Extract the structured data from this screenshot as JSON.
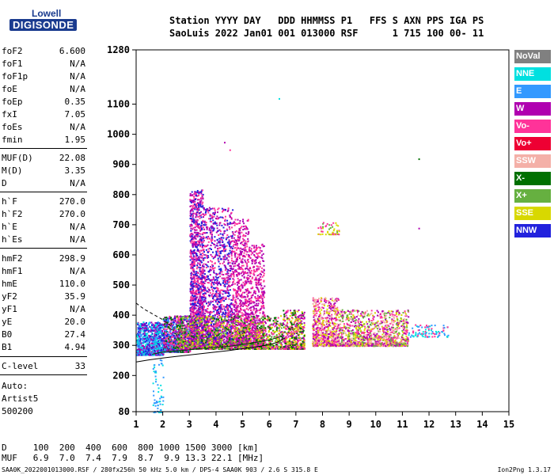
{
  "logo": {
    "line1": "Lowell",
    "line2": "DIGISONDE"
  },
  "header": {
    "line1": "Station YYYY DAY   DDD HHMMSS P1   FFS S AXN PPS IGA PS",
    "line2": "SaoLuis 2022 Jan01 001 013000 RSF      1 715 100 00- 11"
  },
  "params_group1": [
    {
      "name": "foF2",
      "value": "6.600"
    },
    {
      "name": "foF1",
      "value": "N/A"
    },
    {
      "name": "foF1p",
      "value": "N/A"
    },
    {
      "name": "foE",
      "value": "N/A"
    },
    {
      "name": "foEp",
      "value": "0.35"
    },
    {
      "name": "fxI",
      "value": "7.05"
    },
    {
      "name": "foEs",
      "value": "N/A"
    },
    {
      "name": "fmin",
      "value": "1.95"
    }
  ],
  "params_group2": [
    {
      "name": "MUF(D)",
      "value": "22.08"
    },
    {
      "name": "M(D)",
      "value": "3.35"
    },
    {
      "name": "D",
      "value": "N/A"
    }
  ],
  "params_group3": [
    {
      "name": "h`F",
      "value": "270.0"
    },
    {
      "name": "h`F2",
      "value": "270.0"
    },
    {
      "name": "h`E",
      "value": "N/A"
    },
    {
      "name": "h`Es",
      "value": "N/A"
    }
  ],
  "params_group4": [
    {
      "name": "hmF2",
      "value": "298.9"
    },
    {
      "name": "hmF1",
      "value": "N/A"
    },
    {
      "name": "hmE",
      "value": "110.0"
    },
    {
      "name": "yF2",
      "value": "35.9"
    },
    {
      "name": "yF1",
      "value": "N/A"
    },
    {
      "name": "yE",
      "value": "20.0"
    },
    {
      "name": "B0",
      "value": "27.4"
    },
    {
      "name": "B1",
      "value": "4.94"
    }
  ],
  "params_group5": [
    {
      "name": "C-level",
      "value": "33"
    }
  ],
  "notes": [
    "Auto:",
    "Artist5",
    "500200"
  ],
  "muf_table": {
    "d_line": "D     100  200  400  600  800 1000 1500 3000 [km]",
    "muf_line": "MUF   6.9  7.0  7.4  7.9  8.7  9.9 13.3 22.1 [MHz]"
  },
  "footer": "SAA0K_2022001013000.RSF / 280fx256h 50 kHz 5.0 km / DPS-4 SAA0K 903 / 2.6 S 315.8 E",
  "version": "Ion2Png 1.3.17",
  "legend": [
    {
      "label": "NoVal",
      "color": "#808080"
    },
    {
      "label": "NNE",
      "color": "#00e0e0"
    },
    {
      "label": "E",
      "color": "#3399ff"
    },
    {
      "label": "W",
      "color": "#b000b0"
    },
    {
      "label": "Vo-",
      "color": "#ff3399"
    },
    {
      "label": "Vo+",
      "color": "#ee0033"
    },
    {
      "label": "SSW",
      "color": "#f4b0a8"
    },
    {
      "label": "X-",
      "color": "#007000"
    },
    {
      "label": "X+",
      "color": "#66b040"
    },
    {
      "label": "SSE",
      "color": "#d8d800"
    },
    {
      "label": "NNW",
      "color": "#2222dd"
    }
  ],
  "chart_data": {
    "type": "scatter",
    "x_range": [
      1,
      15
    ],
    "y_range": [
      80,
      1280
    ],
    "x_ticks": [
      "1",
      "2",
      "3",
      "4",
      "5",
      "6",
      "7",
      "8",
      "9",
      "10",
      "11",
      "12",
      "13",
      "14",
      "15"
    ],
    "y_ticks": [
      "80",
      "200",
      "300",
      "400",
      "500",
      "600",
      "700",
      "800",
      "900",
      "1000",
      "1100",
      "1280"
    ],
    "y_tick_values": [
      80,
      200,
      300,
      400,
      500,
      600,
      700,
      800,
      900,
      1000,
      1100,
      1280
    ],
    "clusters": [
      {
        "x": [
          1.0,
          2.0
        ],
        "y": [
          270,
          380
        ],
        "n": 900,
        "colors": [
          "#2222dd",
          "#3399ff",
          "#b000b0",
          "#00e0e0"
        ]
      },
      {
        "x": [
          2.0,
          3.0
        ],
        "y": [
          280,
          400
        ],
        "n": 900,
        "colors": [
          "#b000b0",
          "#2222dd",
          "#007000",
          "#3399ff",
          "#ff3399"
        ]
      },
      {
        "x": [
          3.0,
          3.5
        ],
        "y": [
          300,
          820
        ],
        "n": 1400,
        "colors": [
          "#b000b0",
          "#2222dd",
          "#ff3399"
        ]
      },
      {
        "x": [
          3.5,
          4.6
        ],
        "y": [
          300,
          760
        ],
        "n": 1300,
        "colors": [
          "#b000b0",
          "#ff3399",
          "#2222dd"
        ]
      },
      {
        "x": [
          4.6,
          5.2
        ],
        "y": [
          300,
          720
        ],
        "n": 800,
        "colors": [
          "#b000b0",
          "#ff3399"
        ]
      },
      {
        "x": [
          5.2,
          5.8
        ],
        "y": [
          300,
          640
        ],
        "n": 600,
        "colors": [
          "#b000b0",
          "#ff3399"
        ]
      },
      {
        "x": [
          2.5,
          6.5
        ],
        "y": [
          290,
          400
        ],
        "n": 1400,
        "colors": [
          "#007000",
          "#66b040",
          "#d8d800",
          "#ff3399",
          "#b000b0"
        ]
      },
      {
        "x": [
          6.5,
          7.3
        ],
        "y": [
          290,
          420
        ],
        "n": 500,
        "colors": [
          "#ff3399",
          "#d8d800",
          "#b000b0",
          "#007000"
        ]
      },
      {
        "x": [
          7.6,
          8.6
        ],
        "y": [
          300,
          460
        ],
        "n": 700,
        "colors": [
          "#ff3399",
          "#b000b0",
          "#d8d800",
          "#f4b0a8"
        ]
      },
      {
        "x": [
          8.6,
          11.2
        ],
        "y": [
          300,
          420
        ],
        "n": 1100,
        "colors": [
          "#ff3399",
          "#d8d800",
          "#b000b0",
          "#f4b0a8",
          "#66b040"
        ]
      },
      {
        "x": [
          11.2,
          12.7
        ],
        "y": [
          330,
          370
        ],
        "n": 90,
        "colors": [
          "#ff3399",
          "#3399ff",
          "#00e0e0"
        ]
      },
      {
        "x": [
          7.8,
          8.6
        ],
        "y": [
          670,
          710
        ],
        "n": 50,
        "colors": [
          "#66b040",
          "#d8d800",
          "#ff3399"
        ]
      },
      {
        "x": [
          1.6,
          2.0
        ],
        "y": [
          80,
          260
        ],
        "n": 60,
        "colors": [
          "#3399ff",
          "#00e0e0"
        ]
      }
    ],
    "outliers": [
      {
        "x": 6.35,
        "y": 1120,
        "color": "#00e0e0"
      },
      {
        "x": 11.6,
        "y": 920,
        "color": "#007000"
      },
      {
        "x": 4.3,
        "y": 975,
        "color": "#b000b0"
      },
      {
        "x": 4.5,
        "y": 950,
        "color": "#ff3399"
      },
      {
        "x": 11.6,
        "y": 690,
        "color": "#b000b0"
      }
    ],
    "profile_curve": {
      "x": [
        1.0,
        1.5,
        2.0,
        2.5,
        3.0,
        3.5,
        4.0,
        4.5,
        5.0,
        5.5,
        6.0,
        6.3,
        6.6
      ],
      "y": [
        245,
        252,
        258,
        263,
        268,
        273,
        278,
        283,
        289,
        295,
        302,
        310,
        325
      ]
    },
    "trace_curve": {
      "x": [
        1.6,
        2.0,
        2.5,
        3.0,
        3.5,
        4.0,
        4.5,
        5.0,
        5.5,
        6.0,
        6.5
      ],
      "y": [
        270,
        278,
        282,
        285,
        290,
        293,
        297,
        303,
        310,
        318,
        330
      ]
    },
    "dashed_curve": {
      "x": [
        1.0,
        1.3,
        1.6,
        2.0,
        2.3
      ],
      "y": [
        440,
        420,
        405,
        385,
        365
      ]
    }
  }
}
